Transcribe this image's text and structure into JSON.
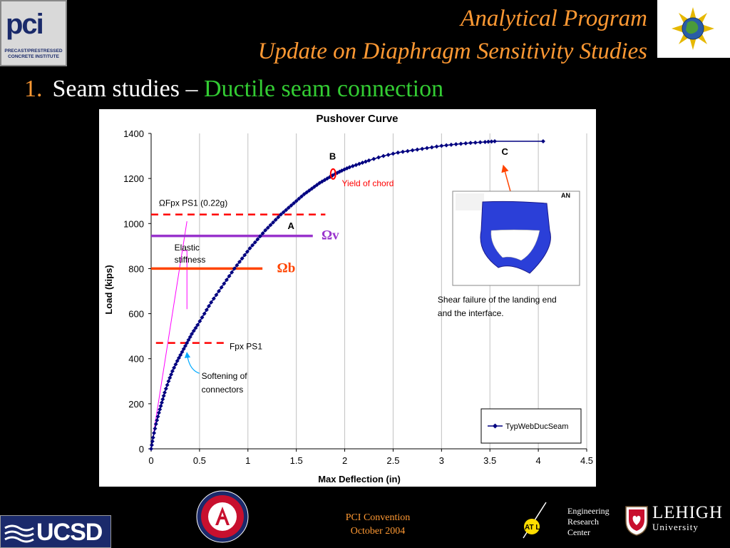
{
  "header": {
    "title_line1": "Analytical Program",
    "title_line2": "Update on Diaphragm Sensitivity Studies",
    "bullet_number": "1.",
    "bullet_text": "Seam studies – ",
    "bullet_highlight": "Ductile seam connection"
  },
  "logos": {
    "pci_letters": "pci",
    "pci_subtitle": "PRECAST/PRESTRESSED CONCRETE INSTITUTE",
    "ucsd_text": "UCSD",
    "atlss_text": "AT LSS",
    "lehigh_name": "LEHIGH",
    "lehigh_sub": "University"
  },
  "footer": {
    "line1": "PCI Convention",
    "line2": "October 2004",
    "erc_line1": "Engineering",
    "erc_line2": "Research",
    "erc_line3": "Center"
  },
  "colors": {
    "title_orange": "#ff9933",
    "highlight_green": "#33cc33",
    "series_blue": "#000080",
    "dashed_red": "#ff0000",
    "omega_v_purple": "#9933cc",
    "omega_b_orange": "#ff4400",
    "elastic_magenta": "#ff00ff"
  },
  "chart_data": {
    "type": "line",
    "title": "Pushover Curve",
    "xlabel": "Max Deflection (in)",
    "ylabel": "Load (kips)",
    "xlim": [
      0,
      4.5
    ],
    "ylim": [
      0,
      1400
    ],
    "xticks": [
      "0",
      "0.5",
      "1",
      "1.5",
      "2",
      "2.5",
      "3",
      "3.5",
      "4",
      "4.5"
    ],
    "yticks": [
      "0",
      "200",
      "400",
      "600",
      "800",
      "1000",
      "1200",
      "1400"
    ],
    "grid": "vertical",
    "legend": {
      "position": "bottom-right",
      "entries": [
        "TypWebDucSeam"
      ]
    },
    "series": [
      {
        "name": "TypWebDucSeam",
        "x": [
          0,
          0.02,
          0.05,
          0.08,
          0.11,
          0.14,
          0.18,
          0.22,
          0.27,
          0.32,
          0.37,
          0.42,
          0.48,
          0.55,
          0.62,
          0.7,
          0.78,
          0.86,
          0.94,
          1.02,
          1.1,
          1.18,
          1.26,
          1.34,
          1.42,
          1.5,
          1.58,
          1.66,
          1.74,
          1.82,
          1.9,
          1.97,
          2.05,
          2.15,
          2.25,
          2.4,
          2.55,
          2.7,
          2.85,
          3.0,
          3.15,
          3.3,
          3.45,
          3.55,
          4.05
        ],
        "y": [
          0,
          50,
          110,
          160,
          205,
          250,
          300,
          345,
          390,
          430,
          470,
          510,
          550,
          600,
          650,
          700,
          750,
          800,
          845,
          890,
          930,
          970,
          1005,
          1040,
          1070,
          1100,
          1130,
          1155,
          1180,
          1200,
          1220,
          1235,
          1250,
          1265,
          1280,
          1300,
          1315,
          1325,
          1335,
          1345,
          1352,
          1358,
          1362,
          1365,
          1365
        ]
      }
    ],
    "reference_lines": [
      {
        "label": "ΩFpx PS1 (0.22g)",
        "y": 1040,
        "x_end": 1.8,
        "style": "dashed",
        "color": "#ff0000"
      },
      {
        "label": "Ωv",
        "y": 945,
        "x_end": 1.67,
        "style": "solid",
        "color": "#9933cc"
      },
      {
        "label": "Ωb",
        "y": 800,
        "x_end": 1.15,
        "style": "solid",
        "color": "#ff4400"
      },
      {
        "label": "Fpx PS1",
        "y": 470,
        "x_end": 0.75,
        "style": "dashed",
        "color": "#ff0000"
      }
    ],
    "elastic_stiffness_line": {
      "x": [
        0,
        0.37
      ],
      "y": [
        0,
        1010
      ]
    },
    "annotations": [
      {
        "text": "A",
        "x": 1.41,
        "y": 975
      },
      {
        "text": "B",
        "x": 1.84,
        "y": 1285
      },
      {
        "text": "C",
        "x": 3.62,
        "y": 1305
      },
      {
        "text": "Yield of chord",
        "x": 1.97,
        "y": 1165
      },
      {
        "text": "Elastic stiffness",
        "x": 0.24,
        "y": 880
      },
      {
        "text": "Softening of connectors",
        "x": 0.52,
        "y": 310
      },
      {
        "text": "Shear failure of the landing end and the interface.",
        "x": 2.96,
        "y": 650
      }
    ],
    "inset_image": {
      "label": "AN",
      "caption": "Shear failure of the landing end and the interface."
    }
  }
}
